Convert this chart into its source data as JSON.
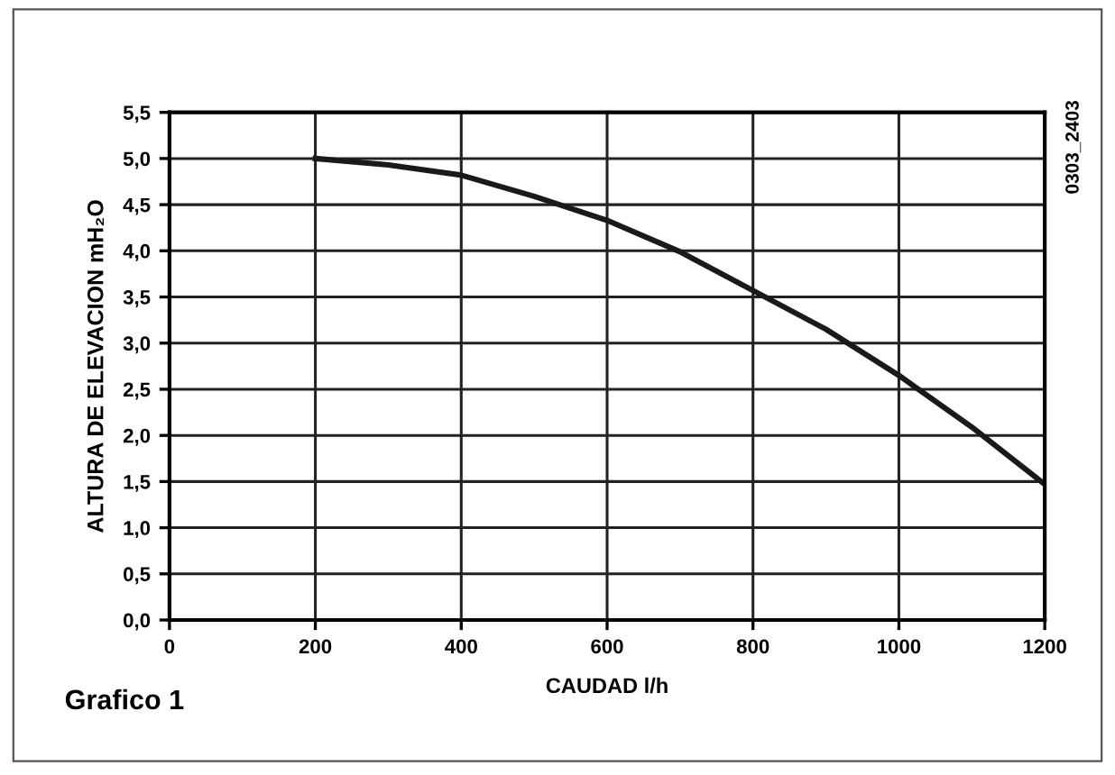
{
  "chart_data": {
    "type": "line",
    "xlabel": "CAUDAD l/h",
    "ylabel": "ALTURA DE ELEVACION mH₂O",
    "annotations": [
      "Grafico 1",
      "0303_2403"
    ],
    "x": [
      200,
      300,
      400,
      500,
      600,
      700,
      800,
      900,
      1000,
      1100,
      1200
    ],
    "series": [
      {
        "color": "#1a1a1a",
        "values": [
          5.0,
          4.93,
          4.82,
          4.59,
          4.33,
          3.99,
          3.57,
          3.15,
          2.65,
          2.09,
          1.47
        ]
      }
    ],
    "xlim": [
      0,
      1200
    ],
    "xticks": [
      0,
      200,
      400,
      600,
      800,
      1000,
      1200
    ],
    "ylim": [
      0,
      5.5
    ],
    "yticks": [
      {
        "value": 0,
        "label": "0,0"
      },
      {
        "value": 0.5,
        "label": "0,5"
      },
      {
        "value": 1,
        "label": "1,0"
      },
      {
        "value": 1.5,
        "label": "1,5"
      },
      {
        "value": 2,
        "label": "2,0"
      },
      {
        "value": 2.5,
        "label": "2,5"
      },
      {
        "value": 3,
        "label": "3,0"
      },
      {
        "value": 3.5,
        "label": "3,5"
      },
      {
        "value": 4,
        "label": "4,0"
      },
      {
        "value": 4.5,
        "label": "4,5"
      },
      {
        "value": 5,
        "label": "5,0"
      },
      {
        "value": 5.5,
        "label": "5,5"
      }
    ],
    "grid": true,
    "marker": "none",
    "line_style": "solid"
  }
}
